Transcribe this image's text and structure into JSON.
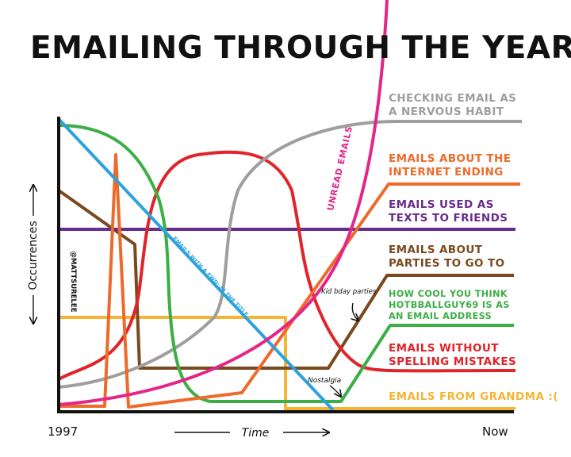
{
  "title": "EMAILING THROUGH THE YEARS",
  "chart_data": {
    "type": "line",
    "xlabel": "Time",
    "ylabel": "Occurrences",
    "x_start_label": "1997",
    "x_end_label": "Now",
    "credit": "@MATTSURELEE",
    "series": [
      {
        "key": "nervous",
        "name": "CHECKING EMAIL AS\nA NERVOUS HABIT",
        "color": "#9e9e9e"
      },
      {
        "key": "internet_ending",
        "name": "EMAILS ABOUT THE\nINTERNET ENDING",
        "color": "#ee6a2a"
      },
      {
        "key": "texts",
        "name": "EMAILS USED AS\nTEXTS TO FRIENDS",
        "color": "#6a2c8c"
      },
      {
        "key": "parties",
        "name": "EMAILS ABOUT\nPARTIES TO GO TO",
        "color": "#7a4a1e"
      },
      {
        "key": "hotball",
        "name": "HOW COOL YOU THINK\nHOTBBALLGUY69 IS AS\nAN EMAIL ADDRESS",
        "color": "#3cae46"
      },
      {
        "key": "spelling",
        "name": "EMAILS WITHOUT\nSPELLING MISTAKES",
        "color": "#e0242a"
      },
      {
        "key": "grandma",
        "name": "EMAILS FROM GRANDMA :(",
        "color": "#f4b536"
      },
      {
        "key": "unread",
        "name": "UNREAD EMAILS",
        "color": "#e3268a"
      },
      {
        "key": "fwd",
        "name": "EMAILS WITH A FWD: IN THE TITLE",
        "color": "#2da2dc"
      }
    ],
    "annotations": [
      {
        "text": "Kid bday parties"
      },
      {
        "text": "Nostalgia"
      }
    ]
  },
  "colors": {
    "axis": "#111111"
  }
}
